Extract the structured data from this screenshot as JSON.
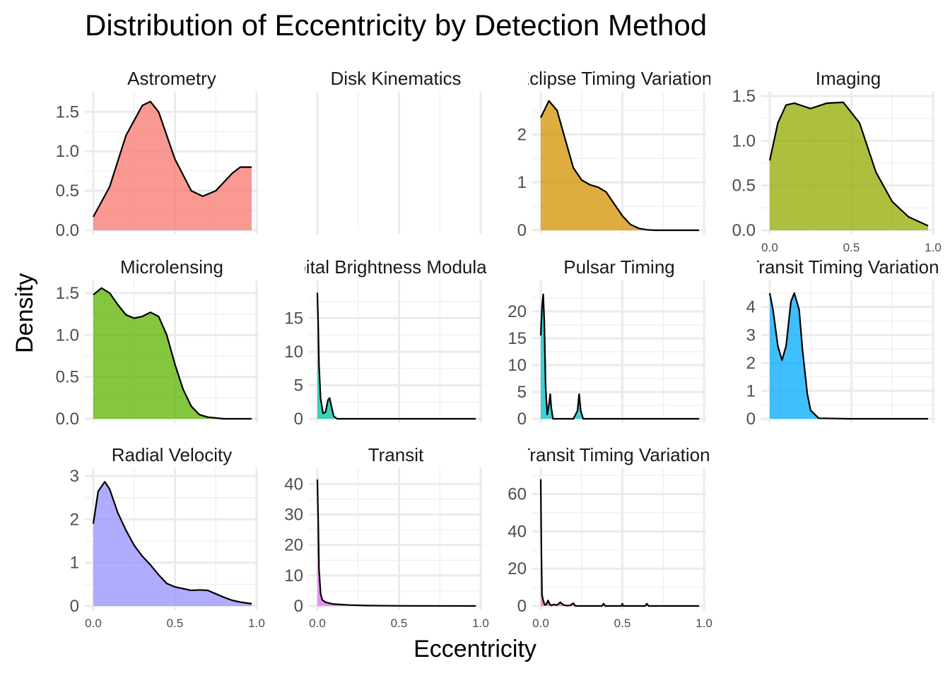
{
  "chart_data": {
    "type": "area",
    "title": "Distribution of Eccentricity by Detection Method",
    "xlabel": "Eccentricity",
    "ylabel": "Density",
    "grid": true,
    "xlim": [
      0,
      1
    ],
    "xticks": [
      "0.0",
      "0.5",
      "1.0"
    ],
    "panels": [
      {
        "name": "Astrometry",
        "color": "#F8766D",
        "ylim": [
          0,
          1.7
        ],
        "yticks": [
          "0.0",
          "0.5",
          "1.0",
          "1.5"
        ],
        "series": [
          {
            "name": "Astrometry",
            "x": [
              0.0,
              0.1,
              0.2,
              0.3,
              0.35,
              0.4,
              0.5,
              0.6,
              0.67,
              0.75,
              0.85,
              0.9,
              0.97
            ],
            "y": [
              0.17,
              0.55,
              1.2,
              1.58,
              1.63,
              1.5,
              0.9,
              0.5,
              0.43,
              0.5,
              0.72,
              0.8,
              0.8
            ]
          }
        ]
      },
      {
        "name": "Disk Kinematics",
        "color": "#E58700",
        "ylim": [
          0,
          1
        ],
        "yticks": [],
        "series": []
      },
      {
        "name": "Eclipse Timing Variations",
        "color": "#D39200",
        "ylim": [
          0,
          2.8
        ],
        "yticks": [
          "0",
          "1",
          "2"
        ],
        "series": [
          {
            "name": "Eclipse Timing Variations",
            "x": [
              0.0,
              0.05,
              0.1,
              0.15,
              0.2,
              0.25,
              0.3,
              0.35,
              0.4,
              0.45,
              0.5,
              0.55,
              0.6,
              0.65,
              0.7,
              0.8,
              0.97
            ],
            "y": [
              2.35,
              2.7,
              2.5,
              1.9,
              1.3,
              1.05,
              0.95,
              0.9,
              0.8,
              0.55,
              0.3,
              0.12,
              0.04,
              0.01,
              0.0,
              0.0,
              0.0
            ]
          }
        ]
      },
      {
        "name": "Imaging",
        "color": "#93AA00",
        "ylim": [
          0,
          1.5
        ],
        "yticks": [
          "0.0",
          "0.5",
          "1.0",
          "1.5"
        ],
        "series": [
          {
            "name": "Imaging",
            "x": [
              0.0,
              0.05,
              0.1,
              0.15,
              0.25,
              0.35,
              0.45,
              0.55,
              0.65,
              0.75,
              0.85,
              0.97
            ],
            "y": [
              0.78,
              1.2,
              1.4,
              1.42,
              1.36,
              1.42,
              1.43,
              1.2,
              0.65,
              0.32,
              0.15,
              0.05
            ]
          }
        ]
      },
      {
        "name": "Microlensing",
        "color": "#5BB300",
        "ylim": [
          0,
          1.6
        ],
        "yticks": [
          "0.0",
          "0.5",
          "1.0",
          "1.5"
        ],
        "series": [
          {
            "name": "Microlensing",
            "x": [
              0.0,
              0.05,
              0.1,
              0.15,
              0.2,
              0.25,
              0.3,
              0.35,
              0.4,
              0.45,
              0.5,
              0.55,
              0.6,
              0.65,
              0.7,
              0.8,
              0.97
            ],
            "y": [
              1.48,
              1.56,
              1.5,
              1.36,
              1.24,
              1.2,
              1.22,
              1.27,
              1.22,
              1.0,
              0.65,
              0.35,
              0.15,
              0.05,
              0.02,
              0.0,
              0.0
            ]
          }
        ]
      },
      {
        "name": "Orbital Brightness Modulation",
        "color": "#00C19F",
        "ylim": [
          0,
          20
        ],
        "yticks": [
          "0",
          "5",
          "10",
          "15"
        ],
        "series": [
          {
            "name": "Orbital Brightness Modulation",
            "x": [
              0.0,
              0.005,
              0.01,
              0.02,
              0.035,
              0.05,
              0.065,
              0.075,
              0.085,
              0.1,
              0.12,
              0.2,
              0.5,
              0.97
            ],
            "y": [
              18.8,
              14.0,
              8.0,
              3.0,
              0.8,
              1.0,
              2.8,
              3.1,
              2.0,
              0.4,
              0.0,
              0.0,
              0.0,
              0.0
            ]
          }
        ]
      },
      {
        "name": "Pulsar Timing",
        "color": "#00BFC4",
        "ylim": [
          0,
          25
        ],
        "yticks": [
          "0",
          "5",
          "10",
          "15",
          "20"
        ],
        "series": [
          {
            "name": "Pulsar Timing",
            "x": [
              0.0,
              0.008,
              0.015,
              0.022,
              0.03,
              0.04,
              0.05,
              0.058,
              0.065,
              0.075,
              0.2,
              0.225,
              0.235,
              0.245,
              0.26,
              0.5,
              0.97
            ],
            "y": [
              15.5,
              21.0,
              23.2,
              18.0,
              6.0,
              0.8,
              2.5,
              4.6,
              2.0,
              0.0,
              0.0,
              1.5,
              4.6,
              1.5,
              0.0,
              0.0,
              0.0
            ]
          }
        ]
      },
      {
        "name": "Transit Timing Variations",
        "color": "#00A9FF",
        "ylim": [
          0,
          4.8
        ],
        "yticks": [
          "0",
          "1",
          "2",
          "3",
          "4"
        ],
        "series": [
          {
            "name": "Transit Timing Variations",
            "x": [
              0.0,
              0.02,
              0.05,
              0.075,
              0.1,
              0.13,
              0.15,
              0.18,
              0.2,
              0.23,
              0.25,
              0.3,
              0.5,
              0.97
            ],
            "y": [
              4.5,
              3.9,
              2.6,
              2.1,
              2.6,
              4.2,
              4.5,
              3.9,
              2.5,
              0.9,
              0.3,
              0.02,
              0.0,
              0.0
            ]
          }
        ]
      },
      {
        "name": "Radial Velocity",
        "color": "#9590FF",
        "ylim": [
          0,
          3.1
        ],
        "yticks": [
          "0",
          "1",
          "2",
          "3"
        ],
        "series": [
          {
            "name": "Radial Velocity",
            "x": [
              0.0,
              0.03,
              0.07,
              0.1,
              0.15,
              0.2,
              0.25,
              0.3,
              0.35,
              0.4,
              0.45,
              0.5,
              0.55,
              0.6,
              0.65,
              0.7,
              0.75,
              0.8,
              0.85,
              0.9,
              0.97
            ],
            "y": [
              1.9,
              2.65,
              2.87,
              2.7,
              2.15,
              1.75,
              1.4,
              1.15,
              0.95,
              0.72,
              0.52,
              0.44,
              0.4,
              0.36,
              0.37,
              0.36,
              0.28,
              0.2,
              0.13,
              0.09,
              0.05
            ]
          }
        ]
      },
      {
        "name": "Transit",
        "color": "#E76BF3",
        "ylim": [
          0,
          44
        ],
        "yticks": [
          "0",
          "10",
          "20",
          "30",
          "40"
        ],
        "series": [
          {
            "name": "Transit",
            "x": [
              0.0,
              0.005,
              0.01,
              0.02,
              0.03,
              0.05,
              0.1,
              0.2,
              0.3,
              0.5,
              0.97
            ],
            "y": [
              41.5,
              28.0,
              12.0,
              4.0,
              2.0,
              1.2,
              0.6,
              0.3,
              0.15,
              0.05,
              0.0
            ]
          }
        ]
      },
      {
        "name": "Transit Timing Variations",
        "color": "#FF62BC",
        "ylim": [
          0,
          72
        ],
        "yticks": [
          "0",
          "20",
          "40",
          "60"
        ],
        "series": [
          {
            "name": "Transit Timing Variations",
            "x": [
              0.0,
              0.004,
              0.008,
              0.015,
              0.025,
              0.035,
              0.045,
              0.055,
              0.065,
              0.08,
              0.1,
              0.12,
              0.14,
              0.16,
              0.18,
              0.2,
              0.21,
              0.22,
              0.3,
              0.375,
              0.385,
              0.395,
              0.495,
              0.5,
              0.505,
              0.64,
              0.65,
              0.66,
              0.97
            ],
            "y": [
              68.0,
              30.0,
              6.0,
              3.0,
              0.5,
              1.0,
              3.0,
              1.0,
              0.3,
              0.8,
              0.5,
              2.0,
              0.5,
              0.2,
              0.3,
              1.5,
              0.2,
              0.0,
              0.0,
              0.0,
              1.3,
              0.0,
              0.0,
              1.2,
              0.0,
              0.0,
              1.2,
              0.0,
              0.0
            ]
          }
        ]
      }
    ]
  }
}
